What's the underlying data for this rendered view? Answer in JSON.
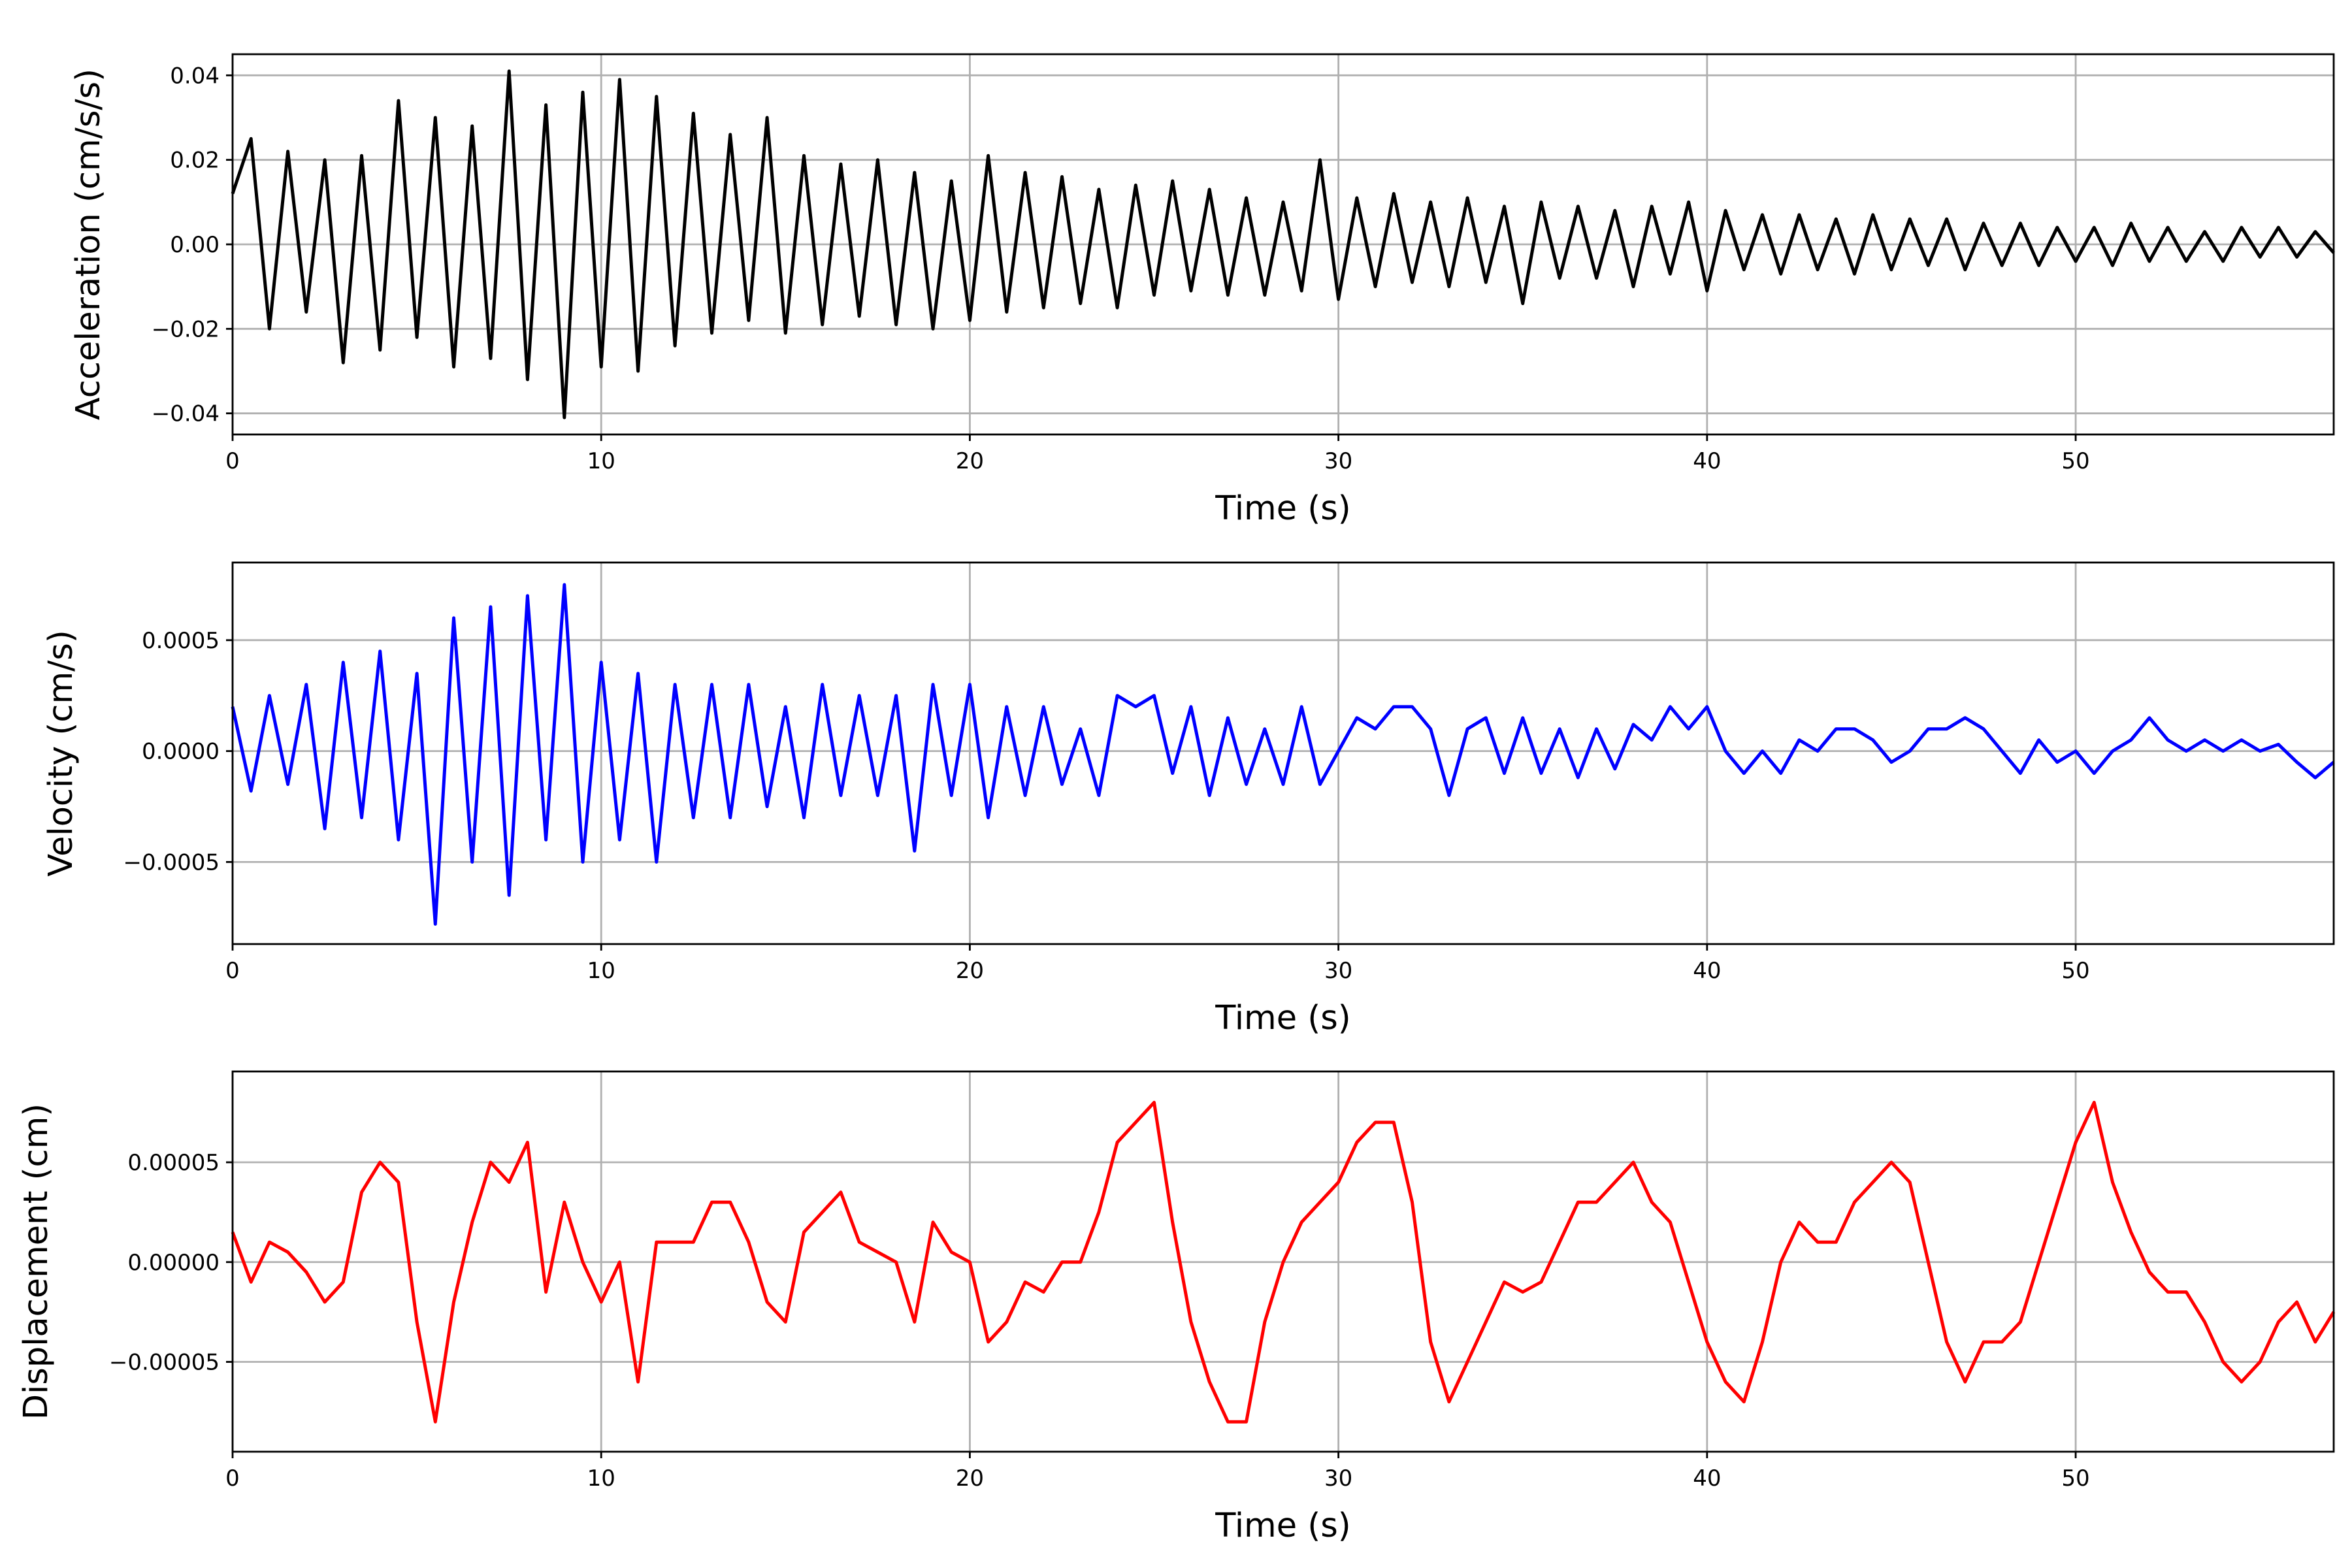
{
  "chart_data": [
    {
      "type": "line",
      "xlabel": "Time (s)",
      "ylabel": "Acceleration (cm/s/s)",
      "xlim": [
        0,
        57
      ],
      "ylim": [
        -0.045,
        0.045
      ],
      "xticks": [
        0,
        10,
        20,
        30,
        40,
        50
      ],
      "xtick_labels": [
        "0",
        "10",
        "20",
        "30",
        "40",
        "50"
      ],
      "yticks": [
        -0.04,
        -0.02,
        0.0,
        0.02,
        0.04
      ],
      "ytick_labels": [
        "−0.04",
        "−0.02",
        "0.00",
        "0.02",
        "0.04"
      ],
      "grid": true,
      "color": "#000000",
      "series": [
        {
          "x": [
            0,
            0.5,
            1,
            1.5,
            2,
            2.5,
            3,
            3.5,
            4,
            4.5,
            5,
            5.5,
            6,
            6.5,
            7,
            7.5,
            8,
            8.5,
            9,
            9.5,
            10,
            10.5,
            11,
            11.5,
            12,
            12.5,
            13,
            13.5,
            14,
            14.5,
            15,
            15.5,
            16,
            16.5,
            17,
            17.5,
            18,
            18.5,
            19,
            19.5,
            20,
            20.5,
            21,
            21.5,
            22,
            22.5,
            23,
            23.5,
            24,
            24.5,
            25,
            25.5,
            26,
            26.5,
            27,
            27.5,
            28,
            28.5,
            29,
            29.5,
            30,
            30.5,
            31,
            31.5,
            32,
            32.5,
            33,
            33.5,
            34,
            34.5,
            35,
            35.5,
            36,
            36.5,
            37,
            37.5,
            38,
            38.5,
            39,
            39.5,
            40,
            40.5,
            41,
            41.5,
            42,
            42.5,
            43,
            43.5,
            44,
            44.5,
            45,
            45.5,
            46,
            46.5,
            47,
            47.5,
            48,
            48.5,
            49,
            49.5,
            50,
            50.5,
            51,
            51.5,
            52,
            52.5,
            53,
            53.5,
            54,
            54.5,
            55,
            55.5,
            56,
            56.5,
            57
          ],
          "y": [
            0.012,
            0.025,
            -0.02,
            0.022,
            -0.016,
            0.02,
            -0.028,
            0.021,
            -0.025,
            0.034,
            -0.022,
            0.03,
            -0.029,
            0.028,
            -0.027,
            0.041,
            -0.032,
            0.033,
            -0.041,
            0.036,
            -0.029,
            0.039,
            -0.03,
            0.035,
            -0.024,
            0.031,
            -0.021,
            0.026,
            -0.018,
            0.03,
            -0.021,
            0.021,
            -0.019,
            0.019,
            -0.017,
            0.02,
            -0.019,
            0.017,
            -0.02,
            0.015,
            -0.018,
            0.021,
            -0.016,
            0.017,
            -0.015,
            0.016,
            -0.014,
            0.013,
            -0.015,
            0.014,
            -0.012,
            0.015,
            -0.011,
            0.013,
            -0.012,
            0.011,
            -0.012,
            0.01,
            -0.011,
            0.02,
            -0.013,
            0.011,
            -0.01,
            0.012,
            -0.009,
            0.01,
            -0.01,
            0.011,
            -0.009,
            0.009,
            -0.014,
            0.01,
            -0.008,
            0.009,
            -0.008,
            0.008,
            -0.01,
            0.009,
            -0.007,
            0.01,
            -0.011,
            0.008,
            -0.006,
            0.007,
            -0.007,
            0.007,
            -0.006,
            0.006,
            -0.007,
            0.007,
            -0.006,
            0.006,
            -0.005,
            0.006,
            -0.006,
            0.005,
            -0.005,
            0.005,
            -0.005,
            0.004,
            -0.004,
            0.004,
            -0.005,
            0.005,
            -0.004,
            0.004,
            -0.004,
            0.003,
            -0.004,
            0.004,
            -0.003,
            0.004,
            -0.003,
            0.003,
            -0.002
          ]
        }
      ]
    },
    {
      "type": "line",
      "xlabel": "Time (s)",
      "ylabel": "Velocity (cm/s)",
      "xlim": [
        0,
        57
      ],
      "ylim": [
        -0.00087,
        0.00085
      ],
      "xticks": [
        0,
        10,
        20,
        30,
        40,
        50
      ],
      "xtick_labels": [
        "0",
        "10",
        "20",
        "30",
        "40",
        "50"
      ],
      "yticks": [
        -0.0005,
        0.0,
        0.0005
      ],
      "ytick_labels": [
        "−0.0005",
        "0.0000",
        "0.0005"
      ],
      "grid": true,
      "color": "#0000ff",
      "series": [
        {
          "x": [
            0,
            0.5,
            1,
            1.5,
            2,
            2.5,
            3,
            3.5,
            4,
            4.5,
            5,
            5.5,
            6,
            6.5,
            7,
            7.5,
            8,
            8.5,
            9,
            9.5,
            10,
            10.5,
            11,
            11.5,
            12,
            12.5,
            13,
            13.5,
            14,
            14.5,
            15,
            15.5,
            16,
            16.5,
            17,
            17.5,
            18,
            18.5,
            19,
            19.5,
            20,
            20.5,
            21,
            21.5,
            22,
            22.5,
            23,
            23.5,
            24,
            24.5,
            25,
            25.5,
            26,
            26.5,
            27,
            27.5,
            28,
            28.5,
            29,
            29.5,
            30,
            30.5,
            31,
            31.5,
            32,
            32.5,
            33,
            33.5,
            34,
            34.5,
            35,
            35.5,
            36,
            36.5,
            37,
            37.5,
            38,
            38.5,
            39,
            39.5,
            40,
            40.5,
            41,
            41.5,
            42,
            42.5,
            43,
            43.5,
            44,
            44.5,
            45,
            45.5,
            46,
            46.5,
            47,
            47.5,
            48,
            48.5,
            49,
            49.5,
            50,
            50.5,
            51,
            51.5,
            52,
            52.5,
            53,
            53.5,
            54,
            54.5,
            55,
            55.5,
            56,
            56.5,
            57
          ],
          "y": [
            0.0002,
            -0.00018,
            0.00025,
            -0.00015,
            0.0003,
            -0.00035,
            0.0004,
            -0.0003,
            0.00045,
            -0.0004,
            0.00035,
            -0.00078,
            0.0006,
            -0.0005,
            0.00065,
            -0.00065,
            0.0007,
            -0.0004,
            0.00075,
            -0.0005,
            0.0004,
            -0.0004,
            0.00035,
            -0.0005,
            0.0003,
            -0.0003,
            0.0003,
            -0.0003,
            0.0003,
            -0.00025,
            0.0002,
            -0.0003,
            0.0003,
            -0.0002,
            0.00025,
            -0.0002,
            0.00025,
            -0.00045,
            0.0003,
            -0.0002,
            0.0003,
            -0.0003,
            0.0002,
            -0.0002,
            0.0002,
            -0.00015,
            0.0001,
            -0.0002,
            0.00025,
            0.0002,
            0.00025,
            -0.0001,
            0.0002,
            -0.0002,
            0.00015,
            -0.00015,
            0.0001,
            -0.00015,
            0.0002,
            -0.00015,
            0.0,
            0.00015,
            0.0001,
            0.0002,
            0.0002,
            0.0001,
            -0.0002,
            0.0001,
            0.00015,
            -0.0001,
            0.00015,
            -0.0001,
            0.0001,
            -0.00012,
            0.0001,
            -8e-05,
            0.00012,
            5e-05,
            0.0002,
            0.0001,
            0.0002,
            0.0,
            -0.0001,
            0.0,
            -0.0001,
            5e-05,
            0.0,
            0.0001,
            0.0001,
            5e-05,
            -5e-05,
            0.0,
            0.0001,
            0.0001,
            0.00015,
            0.0001,
            0.0,
            -0.0001,
            5e-05,
            -5e-05,
            0.0,
            -0.0001,
            0.0,
            5e-05,
            0.00015,
            5e-05,
            0.0,
            5e-05,
            0.0,
            5e-05,
            0.0,
            3e-05,
            -5e-05,
            -0.00012,
            -5e-05
          ]
        }
      ]
    },
    {
      "type": "line",
      "xlabel": "Time (s)",
      "ylabel": "Displacement (cm)",
      "xlim": [
        0,
        57
      ],
      "ylim": [
        -9.5e-05,
        9.55e-05
      ],
      "xticks": [
        0,
        10,
        20,
        30,
        40,
        50
      ],
      "xtick_labels": [
        "0",
        "10",
        "20",
        "30",
        "40",
        "50"
      ],
      "yticks": [
        -5e-05,
        0.0,
        5e-05
      ],
      "ytick_labels": [
        "−0.00005",
        "0.00000",
        "0.00005"
      ],
      "grid": true,
      "color": "#ff0000",
      "series": [
        {
          "x": [
            0,
            0.5,
            1,
            1.5,
            2,
            2.5,
            3,
            3.5,
            4,
            4.5,
            5,
            5.5,
            6,
            6.5,
            7,
            7.5,
            8,
            8.5,
            9,
            9.5,
            10,
            10.5,
            11,
            11.5,
            12,
            12.5,
            13,
            13.5,
            14,
            14.5,
            15,
            15.5,
            16,
            16.5,
            17,
            17.5,
            18,
            18.5,
            19,
            19.5,
            20,
            20.5,
            21,
            21.5,
            22,
            22.5,
            23,
            23.5,
            24,
            24.5,
            25,
            25.5,
            26,
            26.5,
            27,
            27.5,
            28,
            28.5,
            29,
            29.5,
            30,
            30.5,
            31,
            31.5,
            32,
            32.5,
            33,
            33.5,
            34,
            34.5,
            35,
            35.5,
            36,
            36.5,
            37,
            37.5,
            38,
            38.5,
            39,
            39.5,
            40,
            40.5,
            41,
            41.5,
            42,
            42.5,
            43,
            43.5,
            44,
            44.5,
            45,
            45.5,
            46,
            46.5,
            47,
            47.5,
            48,
            48.5,
            49,
            49.5,
            50,
            50.5,
            51,
            51.5,
            52,
            52.5,
            53,
            53.5,
            54,
            54.5,
            55,
            55.5,
            56,
            56.5,
            57
          ],
          "y": [
            1.5e-05,
            -1e-05,
            1e-05,
            5e-06,
            -5e-06,
            -2e-05,
            -1e-05,
            3.5e-05,
            5e-05,
            4e-05,
            -3e-05,
            -8e-05,
            -2e-05,
            2e-05,
            5e-05,
            4e-05,
            6e-05,
            -1.5e-05,
            3e-05,
            0.0,
            -2e-05,
            0.0,
            -6e-05,
            1e-05,
            1e-05,
            1e-05,
            3e-05,
            3e-05,
            1e-05,
            -2e-05,
            -3e-05,
            1.5e-05,
            2.5e-05,
            3.5e-05,
            1e-05,
            5e-06,
            0.0,
            -3e-05,
            2e-05,
            5e-06,
            0.0,
            -4e-05,
            -3e-05,
            -1e-05,
            -1.5e-05,
            0.0,
            0.0,
            2.5e-05,
            6e-05,
            7e-05,
            8e-05,
            2e-05,
            -3e-05,
            -6e-05,
            -8e-05,
            -8e-05,
            -3e-05,
            0.0,
            2e-05,
            3e-05,
            4e-05,
            6e-05,
            7e-05,
            7e-05,
            3e-05,
            -4e-05,
            -7e-05,
            -5e-05,
            -3e-05,
            -1e-05,
            -1.5e-05,
            -1e-05,
            1e-05,
            3e-05,
            3e-05,
            4e-05,
            5e-05,
            3e-05,
            2e-05,
            -1e-05,
            -4e-05,
            -6e-05,
            -7e-05,
            -4e-05,
            0.0,
            2e-05,
            1e-05,
            1e-05,
            3e-05,
            4e-05,
            5e-05,
            4e-05,
            0.0,
            -4e-05,
            -6e-05,
            -4e-05,
            -4e-05,
            -3e-05,
            0.0,
            3e-05,
            6e-05,
            8e-05,
            4e-05,
            1.5e-05,
            -5e-06,
            -1.5e-05,
            -1.5e-05,
            -3e-05,
            -5e-05,
            -6e-05,
            -5e-05,
            -3e-05,
            -2e-05,
            -4e-05,
            -2.5e-05
          ]
        }
      ]
    }
  ]
}
